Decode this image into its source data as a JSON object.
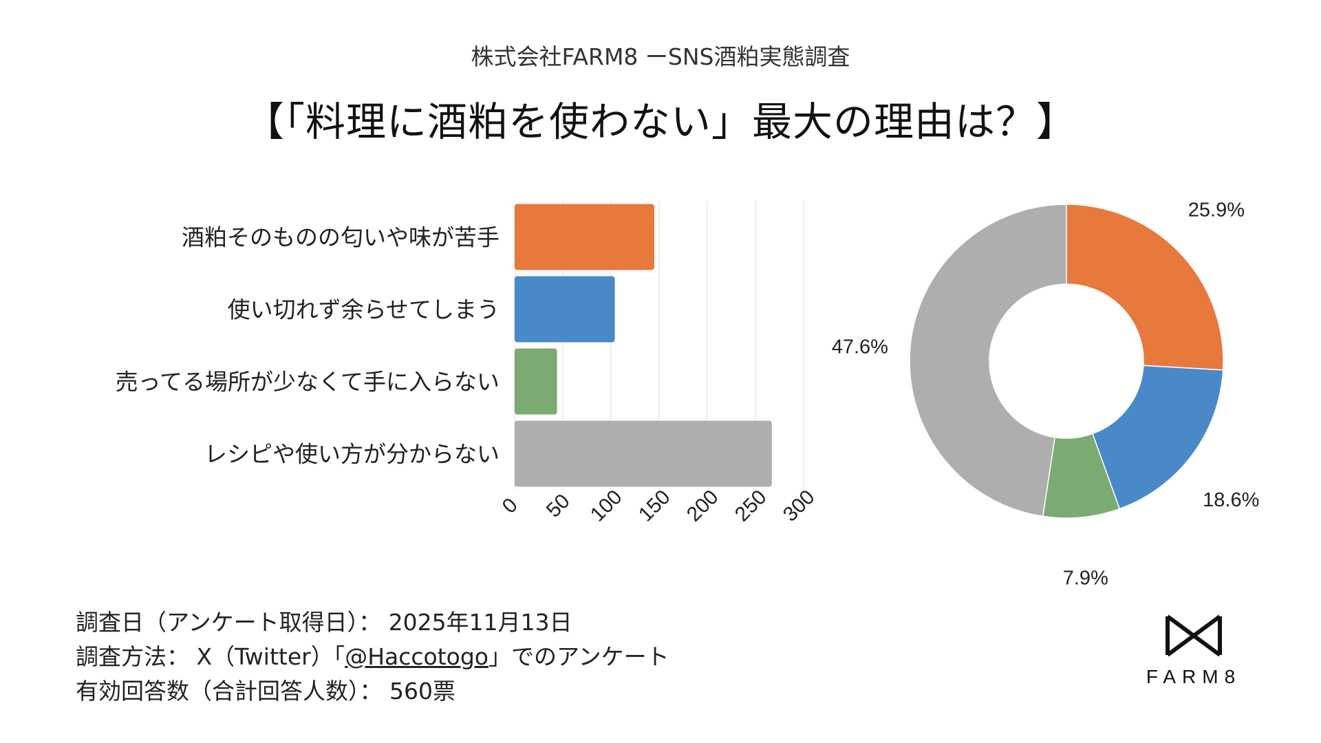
{
  "header": {
    "subtitle": "株式会社FARM8 ーSNS酒粕実態調査",
    "title": "【「料理に酒粕を使わない」最大の理由は？】"
  },
  "chart_data": [
    {
      "type": "bar",
      "orientation": "horizontal",
      "categories": [
        "酒粕そのものの匂いや味が苦手",
        "使い切れず余らせてしまう",
        "売ってる場所が少なくて手に入らない",
        "レシピや使い方が分からない"
      ],
      "values": [
        145,
        104,
        44,
        267
      ],
      "xlim": [
        0,
        300
      ],
      "xticks": [
        0,
        50,
        100,
        150,
        200,
        250,
        300
      ],
      "grid": true,
      "colors": [
        "#E8793D",
        "#4A89C8",
        "#7BAA72",
        "#AEAEAE"
      ]
    },
    {
      "type": "pie",
      "style": "donut",
      "labels": [
        "酒粕そのものの匂いや味が苦手",
        "使い切れず余らせてしまう",
        "売ってる場所が少なくて手に入らない",
        "レシピや使い方が分からない"
      ],
      "values": [
        25.9,
        18.6,
        7.9,
        47.6
      ],
      "value_labels": [
        "25.9%",
        "18.6%",
        "7.9%",
        "47.6%"
      ],
      "colors": [
        "#E8793D",
        "#4A89C8",
        "#7BAA72",
        "#AEAEAE"
      ]
    }
  ],
  "footer": {
    "date_line": "調査日（アンケート取得日）： 2025年11月13日",
    "method_prefix": "調査方法： X（Twitter）「",
    "method_handle": "@Haccotogo",
    "method_suffix": "」でのアンケート",
    "responses_line": "有効回答数（合計回答人数）： 560票"
  },
  "logo": {
    "text": "FARM8",
    "icon": "bowtie-logo-icon"
  }
}
